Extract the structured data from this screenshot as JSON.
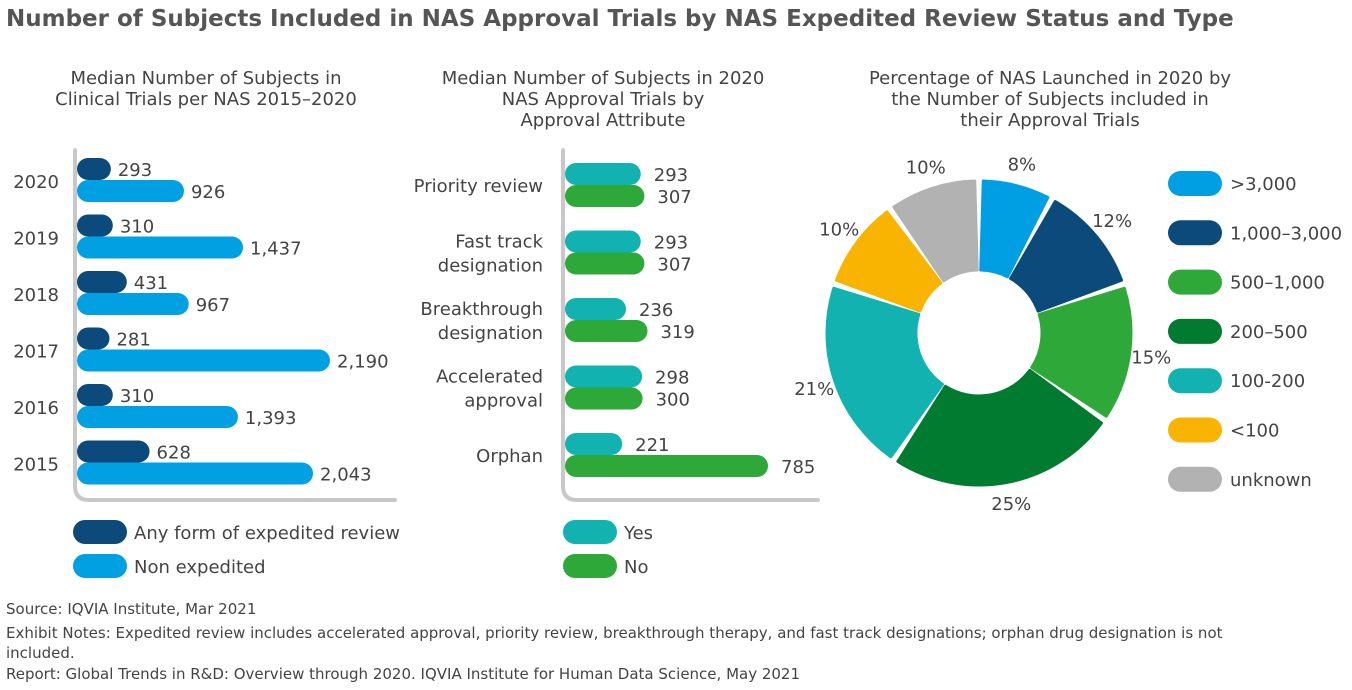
{
  "title": "Number of Subjects Included in NAS Approval Trials by NAS Expedited Review Status and Type",
  "chart_data": [
    {
      "type": "bar",
      "orientation": "horizontal",
      "title_lines": [
        "Median Number of Subjects in",
        "Clinical Trials per NAS 2015–2020"
      ],
      "categories": [
        "2020",
        "2019",
        "2018",
        "2017",
        "2016",
        "2015"
      ],
      "series": [
        {
          "name": "Any form of expedited review",
          "color": "#0b4a7a",
          "values": [
            293,
            310,
            431,
            281,
            310,
            628
          ],
          "labels": [
            "293",
            "310",
            "431",
            "281",
            "310",
            "628"
          ]
        },
        {
          "name": "Non expedited",
          "color": "#00a0e3",
          "values": [
            926,
            1437,
            967,
            2190,
            1393,
            2043
          ],
          "labels": [
            "926",
            "1,437",
            "967",
            "2,190",
            "1,393",
            "2,043"
          ]
        }
      ],
      "xlim": [
        0,
        2500
      ],
      "grid": false,
      "legend_position": "bottom"
    },
    {
      "type": "bar",
      "orientation": "horizontal",
      "title_lines": [
        "Median Number of Subjects in 2020",
        "NAS Approval Trials by",
        "Approval Attribute"
      ],
      "categories": [
        [
          "Priority review"
        ],
        [
          "Fast track",
          "designation"
        ],
        [
          "Breakthrough",
          "designation"
        ],
        [
          "Accelerated",
          "approval"
        ],
        [
          "Orphan"
        ]
      ],
      "series": [
        {
          "name": "Yes",
          "color": "#12b2b0",
          "values": [
            293,
            293,
            236,
            298,
            221
          ],
          "labels": [
            "293",
            "293",
            "236",
            "298",
            "221"
          ]
        },
        {
          "name": "No",
          "color": "#2fa83a",
          "values": [
            307,
            307,
            319,
            300,
            785
          ],
          "labels": [
            "307",
            "307",
            "319",
            "300",
            "785"
          ]
        }
      ],
      "xlim": [
        0,
        900
      ],
      "grid": false,
      "legend_position": "bottom"
    },
    {
      "type": "pie",
      "donut": true,
      "title_lines": [
        "Percentage of NAS Launched in 2020 by",
        "the Number of Subjects included in",
        "their Approval Trials"
      ],
      "slices": [
        {
          "label": ">3,000",
          "value": 8,
          "text": "8%",
          "color": "#009fe3"
        },
        {
          "label": "1,000–3,000",
          "value": 12,
          "text": "12%",
          "color": "#0b4a7a"
        },
        {
          "label": "500–1,000",
          "value": 15,
          "text": "15%",
          "color": "#2fa83a"
        },
        {
          "label": "200–500",
          "value": 25,
          "text": "25%",
          "color": "#007b30"
        },
        {
          "label": "100-200",
          "value": 21,
          "text": "21%",
          "color": "#12b2b0"
        },
        {
          "label": "<100",
          "value": 10,
          "text": "10%",
          "color": "#f8b400"
        },
        {
          "label": "unknown",
          "value": 10,
          "text": "10%",
          "color": "#b2b2b2"
        }
      ],
      "legend_position": "right"
    }
  ],
  "footer": {
    "source": "Source: IQVIA Institute, Mar 2021",
    "notes": "Exhibit Notes: Expedited review includes accelerated approval, priority review, breakthrough therapy, and fast track designations; orphan drug designation is not",
    "notes_cont": "included.",
    "report": "Report: Global Trends in R&D: Overview through 2020. IQVIA Institute for Human Data Science, May 2021"
  }
}
